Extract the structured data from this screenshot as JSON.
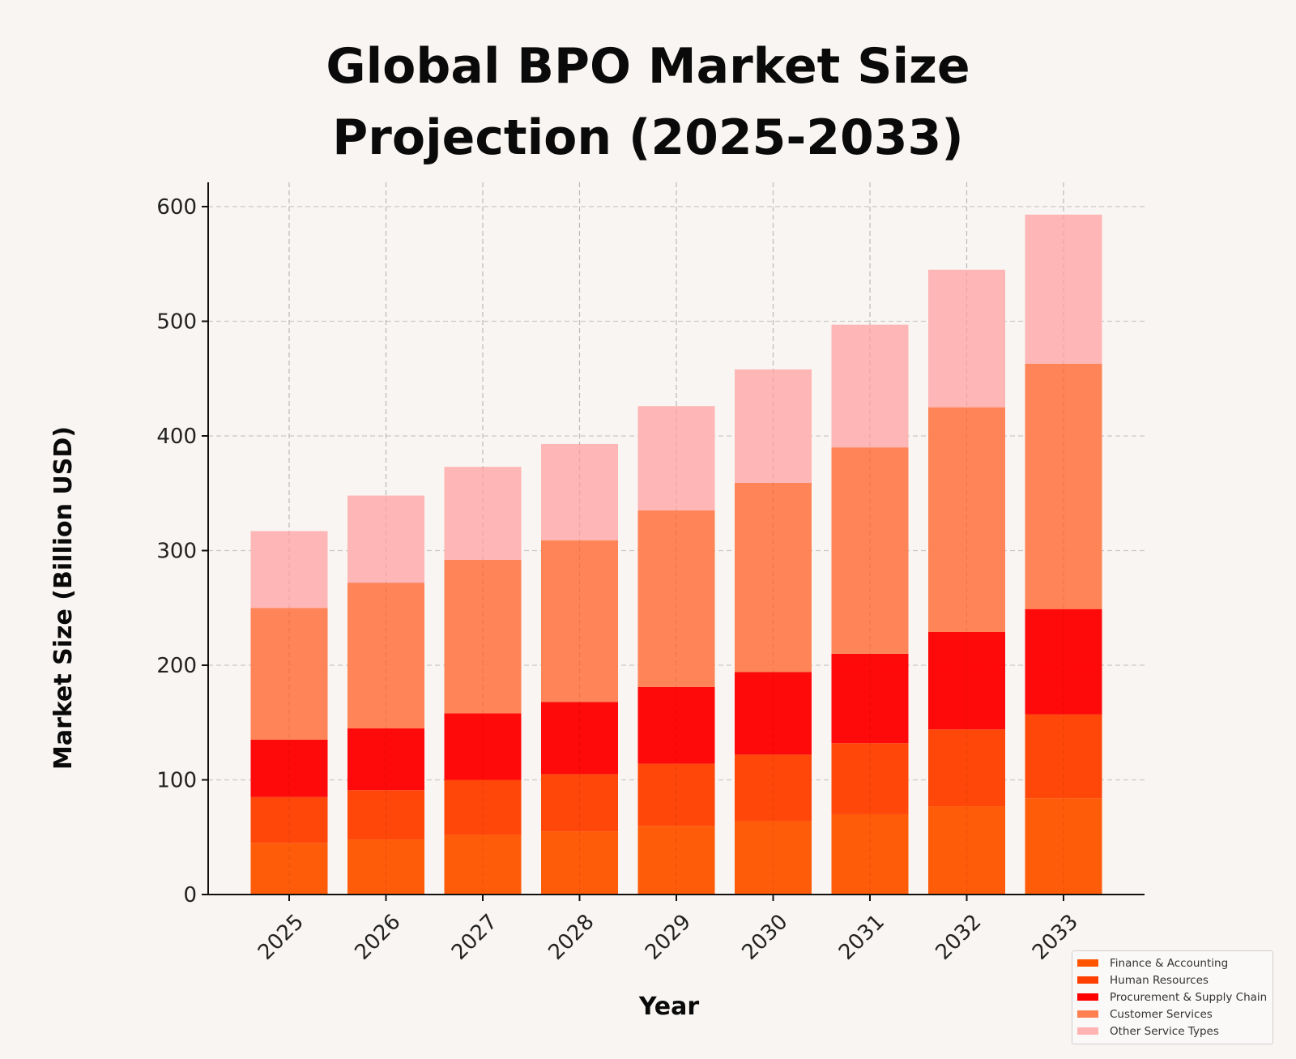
{
  "chart_data": {
    "type": "bar",
    "stacked": true,
    "title": "Global BPO Market Size Projection (2025-2033)",
    "title_lines": [
      "Global BPO Market Size",
      "Projection (2025-2033)"
    ],
    "xlabel": "Year",
    "ylabel": "Market Size (Billion USD)",
    "ylim": [
      0,
      620
    ],
    "yticks": [
      0,
      100,
      200,
      300,
      400,
      500,
      600
    ],
    "categories": [
      "2025",
      "2026",
      "2027",
      "2028",
      "2029",
      "2030",
      "2031",
      "2032",
      "2033"
    ],
    "grid": true,
    "legend_position": "bottom-right",
    "series": [
      {
        "name": "Finance & Accounting",
        "color": "#ff5500",
        "values": [
          45,
          48,
          52,
          55,
          60,
          64,
          70,
          77,
          84
        ]
      },
      {
        "name": "Human Resources",
        "color": "#ff4000",
        "values": [
          40,
          43,
          48,
          50,
          54,
          58,
          62,
          67,
          73
        ]
      },
      {
        "name": "Procurement & Supply Chain",
        "color": "#ff0000",
        "values": [
          50,
          54,
          58,
          63,
          67,
          72,
          78,
          85,
          92
        ]
      },
      {
        "name": "Customer Services",
        "color": "#ff7f50",
        "values": [
          115,
          127,
          134,
          141,
          154,
          165,
          180,
          196,
          214
        ]
      },
      {
        "name": "Other Service Types",
        "color": "#ffb3b3",
        "values": [
          67,
          76,
          81,
          84,
          91,
          99,
          107,
          120,
          130
        ]
      }
    ]
  }
}
